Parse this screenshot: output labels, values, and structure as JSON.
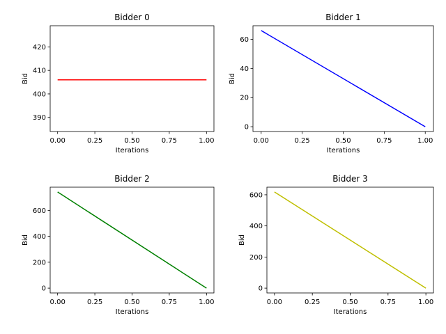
{
  "chart_data": [
    {
      "type": "line",
      "title": "Bidder 0",
      "xlabel": "Iterations",
      "ylabel": "Bid",
      "x": [
        0.0,
        1.0
      ],
      "series": [
        {
          "values": [
            406,
            406
          ],
          "color": "#ff0000"
        }
      ],
      "xlim": [
        -0.05,
        1.05
      ],
      "ylim": [
        384,
        429
      ],
      "xticks": [
        0.0,
        0.25,
        0.5,
        0.75,
        1.0
      ],
      "xtick_labels": [
        "0.00",
        "0.25",
        "0.50",
        "0.75",
        "1.00"
      ],
      "yticks": [
        390,
        400,
        410,
        420
      ],
      "ytick_labels": [
        "390",
        "400",
        "410",
        "420"
      ],
      "grid": false
    },
    {
      "type": "line",
      "title": "Bidder 1",
      "xlabel": "Iterations",
      "ylabel": "Bid",
      "x": [
        0.0,
        1.0
      ],
      "series": [
        {
          "values": [
            66,
            0
          ],
          "color": "#0000ff"
        }
      ],
      "xlim": [
        -0.05,
        1.05
      ],
      "ylim": [
        -3.3,
        69.3
      ],
      "xticks": [
        0.0,
        0.25,
        0.5,
        0.75,
        1.0
      ],
      "xtick_labels": [
        "0.00",
        "0.25",
        "0.50",
        "0.75",
        "1.00"
      ],
      "yticks": [
        0,
        20,
        40,
        60
      ],
      "ytick_labels": [
        "0",
        "20",
        "40",
        "60"
      ],
      "grid": false
    },
    {
      "type": "line",
      "title": "Bidder 2",
      "xlabel": "Iterations",
      "ylabel": "Bid",
      "x": [
        0.0,
        1.0
      ],
      "series": [
        {
          "values": [
            742,
            0
          ],
          "color": "#008000"
        }
      ],
      "xlim": [
        -0.05,
        1.05
      ],
      "ylim": [
        -37.1,
        779.1
      ],
      "xticks": [
        0.0,
        0.25,
        0.5,
        0.75,
        1.0
      ],
      "xtick_labels": [
        "0.00",
        "0.25",
        "0.50",
        "0.75",
        "1.00"
      ],
      "yticks": [
        0,
        200,
        400,
        600
      ],
      "ytick_labels": [
        "0",
        "200",
        "400",
        "600"
      ],
      "grid": false
    },
    {
      "type": "line",
      "title": "Bidder 3",
      "xlabel": "Iterations",
      "ylabel": "Bid",
      "x": [
        0.0,
        1.0
      ],
      "series": [
        {
          "values": [
            618,
            0
          ],
          "color": "#bfbf00"
        }
      ],
      "xlim": [
        -0.05,
        1.05
      ],
      "ylim": [
        -30.9,
        648.9
      ],
      "xticks": [
        0.0,
        0.25,
        0.5,
        0.75,
        1.0
      ],
      "xtick_labels": [
        "0.00",
        "0.25",
        "0.50",
        "0.75",
        "1.00"
      ],
      "yticks": [
        0,
        200,
        400,
        600
      ],
      "ytick_labels": [
        "0",
        "200",
        "400",
        "600"
      ],
      "grid": false
    }
  ]
}
